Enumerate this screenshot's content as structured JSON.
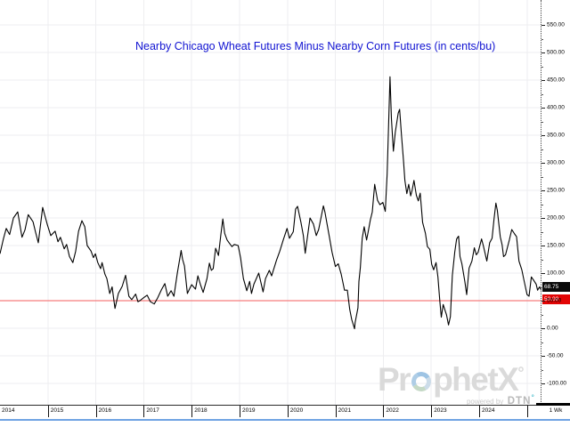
{
  "title": {
    "text": "Nearby Chicago Wheat Futures Minus Nearby Corn Futures (in cents/bu)"
  },
  "y_axis": {
    "tick_labels": [
      "550.00",
      "500.00",
      "450.00",
      "400.00",
      "350.00",
      "300.00",
      "250.00",
      "200.00",
      "150.00",
      "100.00",
      "50.00",
      "0.00",
      "-50.00",
      "-100.00"
    ]
  },
  "x_axis": {
    "year_labels": [
      "2014",
      "2015",
      "2016",
      "2017",
      "2018",
      "2019",
      "2020",
      "2021",
      "2022",
      "2023",
      "2024"
    ],
    "timeframe": "1 Wk"
  },
  "badges": {
    "last_value": "68.75",
    "threshold": "50.00"
  },
  "watermark": {
    "brand": "ProphetX",
    "brand_pre": "Pr",
    "brand_post": "phetX",
    "degree": "°",
    "powered_by": "powered by",
    "dtn": "DTN"
  },
  "colors": {
    "title_blue": "#1113d2",
    "price_line": "#000000",
    "threshold_line": "#f57d7d",
    "threshold_badge_bg": "#e30505",
    "last_badge_bg": "#0a0a0a",
    "grid": "#eeeef0",
    "watermark_gray": "#dadada",
    "dtn_accent": "#2fb4c4",
    "window_bottom_border": "#6fa3e3"
  },
  "chart_data": {
    "type": "line",
    "title": "Nearby Chicago Wheat Futures Minus Nearby Corn Futures (in cents/bu)",
    "series_name": "Nearby Chicago wheat minus nearby corn spread",
    "timeframe": "1 Wk",
    "x_unit": "year (decimal, weekly bars)",
    "y_unit": "cents/bu",
    "xticks": [
      2014,
      2015,
      2016,
      2017,
      2018,
      2019,
      2020,
      2021,
      2022,
      2023,
      2024
    ],
    "yticks": [
      550,
      500,
      450,
      400,
      350,
      300,
      250,
      200,
      150,
      100,
      50,
      0,
      -50,
      -100
    ],
    "xlim_visible": [
      2014.0,
      2025.3
    ],
    "ylim_visible": [
      -139,
      595
    ],
    "grid": true,
    "legend": false,
    "threshold_line": 50,
    "last_value": 68.75,
    "points": [
      [
        2014.0,
        135
      ],
      [
        2014.07,
        162
      ],
      [
        2014.13,
        181
      ],
      [
        2014.2,
        170
      ],
      [
        2014.28,
        200
      ],
      [
        2014.37,
        211
      ],
      [
        2014.46,
        165
      ],
      [
        2014.52,
        178
      ],
      [
        2014.59,
        206
      ],
      [
        2014.69,
        193
      ],
      [
        2014.74,
        175
      ],
      [
        2014.8,
        155
      ],
      [
        2014.89,
        219
      ],
      [
        2014.99,
        187
      ],
      [
        2015.06,
        168
      ],
      [
        2015.15,
        176
      ],
      [
        2015.21,
        157
      ],
      [
        2015.26,
        165
      ],
      [
        2015.34,
        144
      ],
      [
        2015.39,
        152
      ],
      [
        2015.45,
        130
      ],
      [
        2015.52,
        119
      ],
      [
        2015.58,
        140
      ],
      [
        2015.64,
        176
      ],
      [
        2015.71,
        195
      ],
      [
        2015.77,
        184
      ],
      [
        2015.82,
        150
      ],
      [
        2015.9,
        140
      ],
      [
        2015.95,
        128
      ],
      [
        2015.99,
        135
      ],
      [
        2016.04,
        119
      ],
      [
        2016.1,
        108
      ],
      [
        2016.13,
        119
      ],
      [
        2016.19,
        98
      ],
      [
        2016.23,
        90
      ],
      [
        2016.29,
        63
      ],
      [
        2016.34,
        75
      ],
      [
        2016.4,
        36
      ],
      [
        2016.47,
        63
      ],
      [
        2016.55,
        76
      ],
      [
        2016.62,
        96
      ],
      [
        2016.69,
        58
      ],
      [
        2016.75,
        52
      ],
      [
        2016.83,
        62
      ],
      [
        2016.88,
        48
      ],
      [
        2016.92,
        50
      ],
      [
        2016.99,
        55
      ],
      [
        2017.07,
        60
      ],
      [
        2017.14,
        48
      ],
      [
        2017.22,
        44
      ],
      [
        2017.29,
        55
      ],
      [
        2017.37,
        70
      ],
      [
        2017.44,
        81
      ],
      [
        2017.5,
        58
      ],
      [
        2017.57,
        68
      ],
      [
        2017.63,
        58
      ],
      [
        2017.7,
        100
      ],
      [
        2017.78,
        141
      ],
      [
        2017.81,
        125
      ],
      [
        2017.85,
        113
      ],
      [
        2017.91,
        63
      ],
      [
        2017.96,
        72
      ],
      [
        2018.0,
        79
      ],
      [
        2018.08,
        71
      ],
      [
        2018.13,
        95
      ],
      [
        2018.18,
        80
      ],
      [
        2018.24,
        65
      ],
      [
        2018.32,
        90
      ],
      [
        2018.37,
        118
      ],
      [
        2018.41,
        105
      ],
      [
        2018.45,
        108
      ],
      [
        2018.5,
        145
      ],
      [
        2018.56,
        132
      ],
      [
        2018.61,
        170
      ],
      [
        2018.65,
        198
      ],
      [
        2018.69,
        172
      ],
      [
        2018.74,
        160
      ],
      [
        2018.78,
        155
      ],
      [
        2018.84,
        148
      ],
      [
        2018.89,
        152
      ],
      [
        2018.97,
        150
      ],
      [
        2019.02,
        128
      ],
      [
        2019.08,
        90
      ],
      [
        2019.15,
        68
      ],
      [
        2019.21,
        85
      ],
      [
        2019.25,
        63
      ],
      [
        2019.3,
        80
      ],
      [
        2019.4,
        100
      ],
      [
        2019.49,
        66
      ],
      [
        2019.54,
        90
      ],
      [
        2019.62,
        105
      ],
      [
        2019.67,
        95
      ],
      [
        2019.77,
        123
      ],
      [
        2019.84,
        140
      ],
      [
        2019.91,
        160
      ],
      [
        2019.99,
        181
      ],
      [
        2020.04,
        163
      ],
      [
        2020.12,
        175
      ],
      [
        2020.17,
        216
      ],
      [
        2020.21,
        221
      ],
      [
        2020.28,
        192
      ],
      [
        2020.33,
        168
      ],
      [
        2020.37,
        136
      ],
      [
        2020.47,
        200
      ],
      [
        2020.54,
        189
      ],
      [
        2020.6,
        168
      ],
      [
        2020.65,
        179
      ],
      [
        2020.75,
        222
      ],
      [
        2020.78,
        211
      ],
      [
        2020.88,
        163
      ],
      [
        2020.93,
        138
      ],
      [
        2021.0,
        112
      ],
      [
        2021.06,
        117
      ],
      [
        2021.12,
        98
      ],
      [
        2021.19,
        69
      ],
      [
        2021.25,
        69
      ],
      [
        2021.3,
        34
      ],
      [
        2021.34,
        16
      ],
      [
        2021.4,
        -1
      ],
      [
        2021.41,
        10
      ],
      [
        2021.47,
        37
      ],
      [
        2021.49,
        85
      ],
      [
        2021.52,
        110
      ],
      [
        2021.56,
        163
      ],
      [
        2021.6,
        184
      ],
      [
        2021.65,
        160
      ],
      [
        2021.68,
        173
      ],
      [
        2021.73,
        197
      ],
      [
        2021.77,
        211
      ],
      [
        2021.82,
        261
      ],
      [
        2021.88,
        232
      ],
      [
        2021.93,
        224
      ],
      [
        2021.99,
        228
      ],
      [
        2022.04,
        212
      ],
      [
        2022.08,
        280
      ],
      [
        2022.14,
        456
      ],
      [
        2022.17,
        380
      ],
      [
        2022.21,
        321
      ],
      [
        2022.25,
        355
      ],
      [
        2022.31,
        390
      ],
      [
        2022.34,
        397
      ],
      [
        2022.38,
        350
      ],
      [
        2022.42,
        305
      ],
      [
        2022.45,
        268
      ],
      [
        2022.49,
        244
      ],
      [
        2022.53,
        261
      ],
      [
        2022.57,
        240
      ],
      [
        2022.6,
        250
      ],
      [
        2022.64,
        268
      ],
      [
        2022.69,
        241
      ],
      [
        2022.73,
        231
      ],
      [
        2022.77,
        245
      ],
      [
        2022.82,
        192
      ],
      [
        2022.88,
        172
      ],
      [
        2022.92,
        148
      ],
      [
        2022.97,
        143
      ],
      [
        2023.01,
        116
      ],
      [
        2023.05,
        106
      ],
      [
        2023.1,
        119
      ],
      [
        2023.14,
        93
      ],
      [
        2023.18,
        48
      ],
      [
        2023.21,
        20
      ],
      [
        2023.25,
        43
      ],
      [
        2023.29,
        32
      ],
      [
        2023.32,
        24
      ],
      [
        2023.36,
        6
      ],
      [
        2023.4,
        21
      ],
      [
        2023.44,
        96
      ],
      [
        2023.49,
        138
      ],
      [
        2023.53,
        162
      ],
      [
        2023.57,
        167
      ],
      [
        2023.6,
        130
      ],
      [
        2023.64,
        117
      ],
      [
        2023.7,
        85
      ],
      [
        2023.74,
        61
      ],
      [
        2023.79,
        109
      ],
      [
        2023.85,
        122
      ],
      [
        2023.9,
        146
      ],
      [
        2023.94,
        133
      ],
      [
        2023.98,
        138
      ],
      [
        2024.05,
        162
      ],
      [
        2024.09,
        149
      ],
      [
        2024.16,
        122
      ],
      [
        2024.22,
        155
      ],
      [
        2024.27,
        163
      ],
      [
        2024.31,
        198
      ],
      [
        2024.35,
        227
      ],
      [
        2024.38,
        214
      ],
      [
        2024.44,
        166
      ],
      [
        2024.48,
        151
      ],
      [
        2024.51,
        130
      ],
      [
        2024.55,
        133
      ],
      [
        2024.63,
        160
      ],
      [
        2024.68,
        179
      ],
      [
        2024.74,
        171
      ],
      [
        2024.78,
        166
      ],
      [
        2024.83,
        122
      ],
      [
        2024.89,
        106
      ],
      [
        2024.94,
        85
      ],
      [
        2025.0,
        61
      ],
      [
        2025.04,
        58
      ],
      [
        2025.09,
        93
      ],
      [
        2025.13,
        88
      ],
      [
        2025.19,
        80
      ],
      [
        2025.22,
        69
      ],
      [
        2025.26,
        75
      ],
      [
        2025.3,
        68.75
      ]
    ]
  }
}
